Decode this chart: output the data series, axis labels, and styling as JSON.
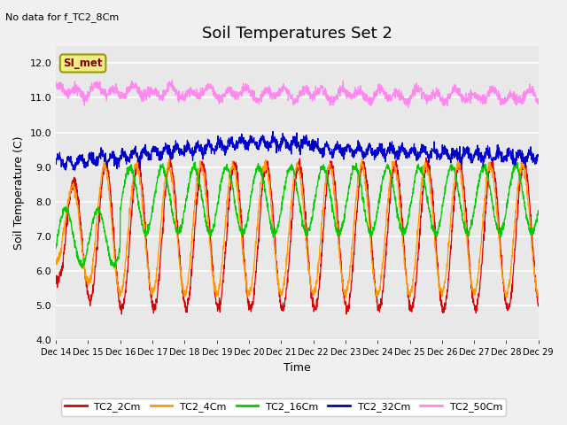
{
  "title": "Soil Temperatures Set 2",
  "subtitle": "No data for f_TC2_8Cm",
  "xlabel": "Time",
  "ylabel": "Soil Temperature (C)",
  "ylim": [
    4.0,
    12.5
  ],
  "yticks": [
    4.0,
    5.0,
    6.0,
    7.0,
    8.0,
    9.0,
    10.0,
    11.0,
    12.0
  ],
  "x_tick_labels": [
    "Dec 14",
    "Dec 15",
    "Dec 16",
    "Dec 17",
    "Dec 18",
    "Dec 19",
    "Dec 20",
    "Dec 21",
    "Dec 22",
    "Dec 23",
    "Dec 24",
    "Dec 25",
    "Dec 26",
    "Dec 27",
    "Dec 28",
    "Dec 29"
  ],
  "n_days": 15,
  "series_colors": {
    "TC2_2Cm": "#dd0000",
    "TC2_4Cm": "#ff9900",
    "TC2_16Cm": "#00cc00",
    "TC2_32Cm": "#0000cc",
    "TC2_50Cm": "#ff88ee"
  },
  "legend_label": "SI_met",
  "legend_box_facecolor": "#eeee88",
  "legend_box_edgecolor": "#999900",
  "legend_text_color": "#880000",
  "bg_color": "#f0f0f0",
  "plot_bg_color": "#e8e8e8",
  "grid_color": "#ffffff",
  "title_fontsize": 13,
  "label_fontsize": 9,
  "tick_fontsize": 8
}
